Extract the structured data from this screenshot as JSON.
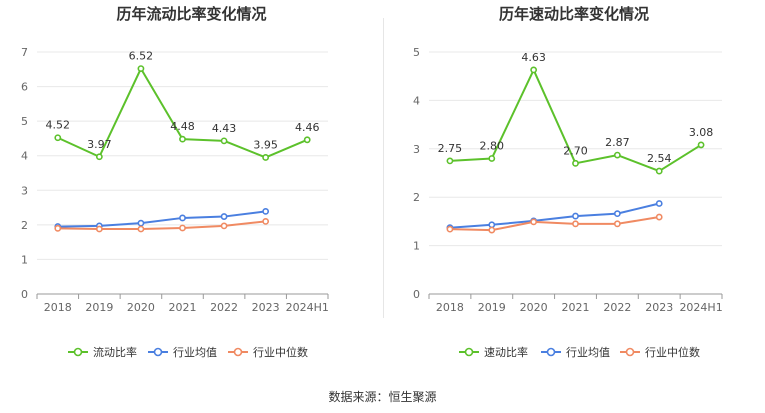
{
  "source": "数据来源：恒生聚源",
  "chart_data": [
    {
      "type": "line",
      "title": "历年流动比率变化情况",
      "categories": [
        "2018",
        "2019",
        "2020",
        "2021",
        "2022",
        "2023",
        "2024H1"
      ],
      "ylim": [
        0,
        7
      ],
      "yticks": [
        0,
        1,
        2,
        3,
        4,
        5,
        6,
        7
      ],
      "grid": true,
      "legend": "bottom",
      "series": [
        {
          "name": "流动比率",
          "color": "#5cc12b",
          "labeled": true,
          "values": [
            4.52,
            3.97,
            6.52,
            4.48,
            4.43,
            3.95,
            4.46
          ],
          "labels": [
            "4.52",
            "3.97",
            "6.52",
            "4.48",
            "4.43",
            "3.95",
            "4.46"
          ]
        },
        {
          "name": "行业均值",
          "color": "#4a7fe0",
          "labeled": false,
          "values": [
            1.95,
            1.97,
            2.05,
            2.2,
            2.24,
            2.39,
            null
          ]
        },
        {
          "name": "行业中位数",
          "color": "#f08a62",
          "labeled": false,
          "values": [
            1.9,
            1.88,
            1.88,
            1.91,
            1.97,
            2.1,
            null
          ]
        }
      ]
    },
    {
      "type": "line",
      "title": "历年速动比率变化情况",
      "categories": [
        "2018",
        "2019",
        "2020",
        "2021",
        "2022",
        "2023",
        "2024H1"
      ],
      "ylim": [
        0,
        5
      ],
      "yticks": [
        0,
        1,
        2,
        3,
        4,
        5
      ],
      "grid": true,
      "legend": "bottom",
      "series": [
        {
          "name": "速动比率",
          "color": "#5cc12b",
          "labeled": true,
          "values": [
            2.75,
            2.8,
            4.63,
            2.7,
            2.87,
            2.54,
            3.08
          ],
          "labels": [
            "2.75",
            "2.80",
            "4.63",
            "2.70",
            "2.87",
            "2.54",
            "3.08"
          ]
        },
        {
          "name": "行业均值",
          "color": "#4a7fe0",
          "labeled": false,
          "values": [
            1.37,
            1.43,
            1.51,
            1.61,
            1.66,
            1.87,
            null
          ]
        },
        {
          "name": "行业中位数",
          "color": "#f08a62",
          "labeled": false,
          "values": [
            1.34,
            1.32,
            1.49,
            1.45,
            1.45,
            1.59,
            null
          ]
        }
      ]
    }
  ]
}
